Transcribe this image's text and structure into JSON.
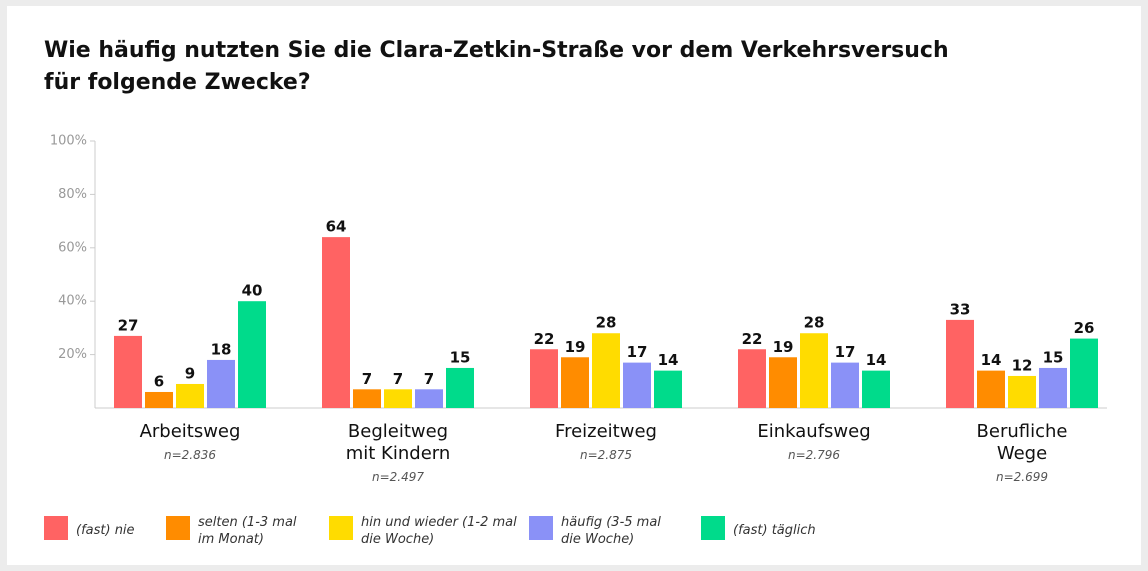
{
  "chart_data": {
    "type": "bar",
    "title": "Wie häufig nutzten Sie die Clara-Zetkin-Straße vor dem Verkehrsversuch für folgende Zwecke?",
    "categories": [
      "Arbeitsweg",
      "Begleitweg mit Kindern",
      "Freizeitweg",
      "Einkaufsweg",
      "Berufliche Wege"
    ],
    "notes": [
      "n=2.836",
      "n=2.497",
      "n=2.875",
      "n=2.796",
      "n=2.699"
    ],
    "series": [
      {
        "name": "(fast) nie",
        "color": "#ff6363",
        "values": [
          27,
          64,
          22,
          22,
          33
        ]
      },
      {
        "name": "selten (1-3 mal im Monat)",
        "color": "#ff8c00",
        "values": [
          6,
          7,
          19,
          19,
          14
        ]
      },
      {
        "name": "hin und wieder (1-2 mal die Woche)",
        "color": "#ffdc00",
        "values": [
          9,
          7,
          28,
          28,
          12
        ]
      },
      {
        "name": "häufig (3-5 mal die Woche)",
        "color": "#8a91f7",
        "values": [
          18,
          7,
          17,
          17,
          15
        ]
      },
      {
        "name": "(fast) täglich",
        "color": "#00db8b",
        "values": [
          40,
          15,
          14,
          14,
          26
        ]
      }
    ],
    "ylim": [
      0,
      100
    ],
    "yticks": [
      {
        "value": 20,
        "label": "20%"
      },
      {
        "value": 40,
        "label": "40%"
      },
      {
        "value": 60,
        "label": "60%"
      },
      {
        "value": 80,
        "label": "80%"
      },
      {
        "value": 100,
        "label": "100%"
      }
    ]
  }
}
